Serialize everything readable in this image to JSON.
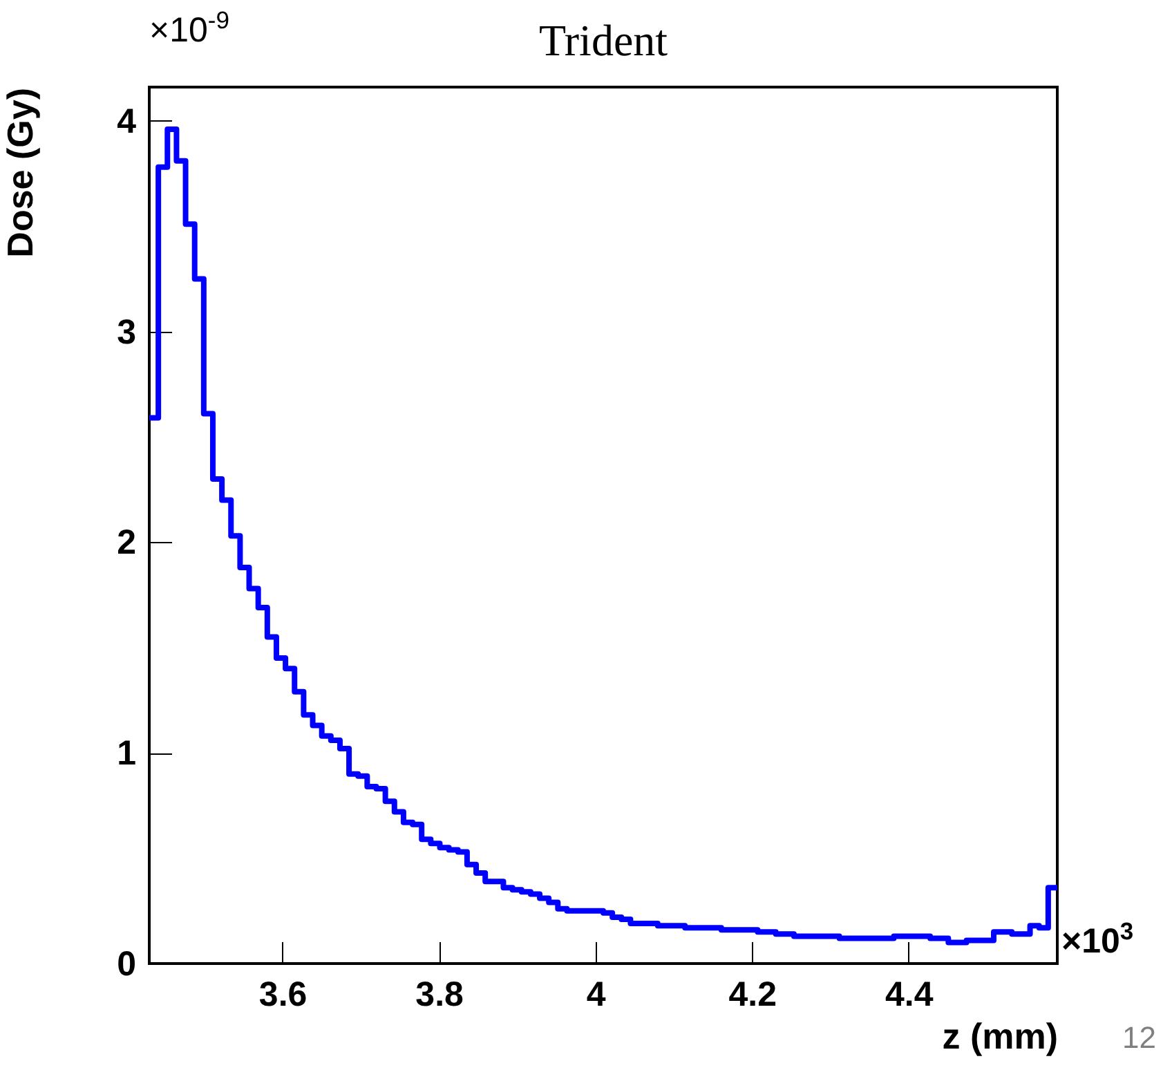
{
  "chart_data": {
    "type": "histogram",
    "title": "Trident",
    "xlabel": "z (mm)",
    "ylabel": "Dose (Gy)",
    "annotations": [
      "×10$^{-9}$",
      "×10$^{3}$",
      "12"
    ],
    "color": "#0000ff",
    "bins": [
      3.43,
      3.4416,
      3.4532,
      3.4648,
      3.4764,
      3.488,
      3.4996,
      3.5112,
      3.5228,
      3.5344,
      3.546,
      3.5576,
      3.5692,
      3.5808,
      3.5924,
      3.604,
      3.6156,
      3.6272,
      3.6388,
      3.6504,
      3.662,
      3.6736,
      3.6852,
      3.6968,
      3.7084,
      3.72,
      3.7316,
      3.7432,
      3.7548,
      3.7664,
      3.778,
      3.7896,
      3.8012,
      3.8128,
      3.8244,
      3.836,
      3.8476,
      3.8592,
      3.8708,
      3.8824,
      3.894,
      3.9056,
      3.9172,
      3.9288,
      3.9404,
      3.952,
      3.9636,
      3.9752,
      3.9868,
      3.9984,
      4.01,
      4.0216,
      4.0332,
      4.0448,
      4.0564,
      4.068,
      4.0796,
      4.0912,
      4.1028,
      4.1144,
      4.126,
      4.1376,
      4.1492,
      4.1608,
      4.1724,
      4.184,
      4.1956,
      4.2072,
      4.2188,
      4.2304,
      4.242,
      4.2536,
      4.2652,
      4.2768,
      4.2884,
      4.3,
      4.3116,
      4.3232,
      4.3348,
      4.3464,
      4.358,
      4.3696,
      4.3812,
      4.3928,
      4.4044,
      4.416,
      4.4276,
      4.4392,
      4.4508,
      4.4624,
      4.474,
      4.4856,
      4.4972,
      4.5088,
      4.5204,
      4.532,
      4.5436,
      4.5552,
      4.5668,
      4.5784,
      4.59
    ],
    "values": [
      2.59,
      3.78,
      3.96,
      3.81,
      3.51,
      3.25,
      2.61,
      2.3,
      2.2,
      2.03,
      1.88,
      1.78,
      1.69,
      1.55,
      1.45,
      1.4,
      1.29,
      1.18,
      1.13,
      1.08,
      1.06,
      1.02,
      0.9,
      0.89,
      0.84,
      0.83,
      0.77,
      0.72,
      0.67,
      0.66,
      0.59,
      0.57,
      0.55,
      0.54,
      0.53,
      0.47,
      0.43,
      0.39,
      0.39,
      0.36,
      0.35,
      0.34,
      0.33,
      0.31,
      0.29,
      0.26,
      0.25,
      0.25,
      0.25,
      0.25,
      0.24,
      0.22,
      0.21,
      0.19,
      0.19,
      0.19,
      0.18,
      0.18,
      0.18,
      0.17,
      0.17,
      0.17,
      0.17,
      0.16,
      0.16,
      0.16,
      0.16,
      0.15,
      0.15,
      0.14,
      0.14,
      0.13,
      0.13,
      0.13,
      0.13,
      0.13,
      0.12,
      0.12,
      0.12,
      0.12,
      0.12,
      0.12,
      0.13,
      0.13,
      0.13,
      0.13,
      0.12,
      0.12,
      0.1,
      0.1,
      0.11,
      0.11,
      0.11,
      0.15,
      0.15,
      0.14,
      0.14,
      0.18,
      0.17,
      0.36
    ],
    "xlim": [
      3.43,
      4.59
    ],
    "ylim": [
      0,
      4.16
    ],
    "xticks": [
      3.6,
      3.8,
      4,
      4.2,
      4.4
    ],
    "yticks": [
      0,
      1,
      2,
      3,
      4
    ]
  }
}
